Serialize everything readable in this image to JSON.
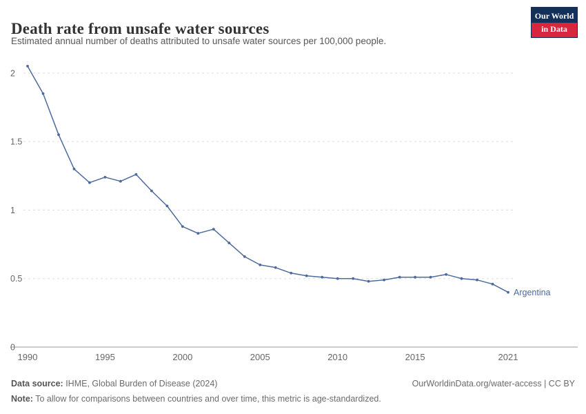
{
  "header": {
    "title": "Death rate from unsafe water sources",
    "subtitle": "Estimated annual number of deaths attributed to unsafe water sources per 100,000 people.",
    "logo": {
      "line1": "Our World",
      "line2": "in Data",
      "bg_color": "#12305a",
      "accent_color": "#d7263d"
    }
  },
  "chart_data": {
    "type": "line",
    "title": "Death rate from unsafe water sources",
    "xlabel": "",
    "ylabel": "",
    "xlim": [
      1990,
      2021
    ],
    "ylim": [
      0,
      2.1
    ],
    "x_ticks": [
      1990,
      1995,
      2000,
      2005,
      2010,
      2015,
      2021
    ],
    "y_ticks": [
      0,
      0.5,
      1,
      1.5,
      2
    ],
    "y_tick_labels": [
      "0",
      "0.5",
      "1",
      "1.5",
      "2"
    ],
    "grid": "horizontal-dashed",
    "legend_position": "end-of-line-label",
    "grid_color": "#dcdcdc",
    "axis_color": "#999999",
    "tick_text_color": "#666666",
    "series": [
      {
        "name": "Argentina",
        "color": "#4C6A9C",
        "x": [
          1990,
          1991,
          1992,
          1993,
          1994,
          1995,
          1996,
          1997,
          1998,
          1999,
          2000,
          2001,
          2002,
          2003,
          2004,
          2005,
          2006,
          2007,
          2008,
          2009,
          2010,
          2011,
          2012,
          2013,
          2014,
          2015,
          2016,
          2017,
          2018,
          2019,
          2020,
          2021
        ],
        "values": [
          2.05,
          1.85,
          1.55,
          1.3,
          1.2,
          1.24,
          1.21,
          1.26,
          1.14,
          1.03,
          0.88,
          0.83,
          0.86,
          0.76,
          0.66,
          0.6,
          0.58,
          0.54,
          0.52,
          0.51,
          0.5,
          0.5,
          0.48,
          0.49,
          0.51,
          0.51,
          0.51,
          0.53,
          0.5,
          0.49,
          0.46,
          0.4
        ]
      }
    ]
  },
  "footer": {
    "source_label": "Data source:",
    "source_text": " IHME, Global Burden of Disease (2024)",
    "note_label": "Note:",
    "note_text": " To allow for comparisons between countries and over time, this metric is age-standardized.",
    "link": "OurWorldinData.org/water-access | CC BY"
  }
}
